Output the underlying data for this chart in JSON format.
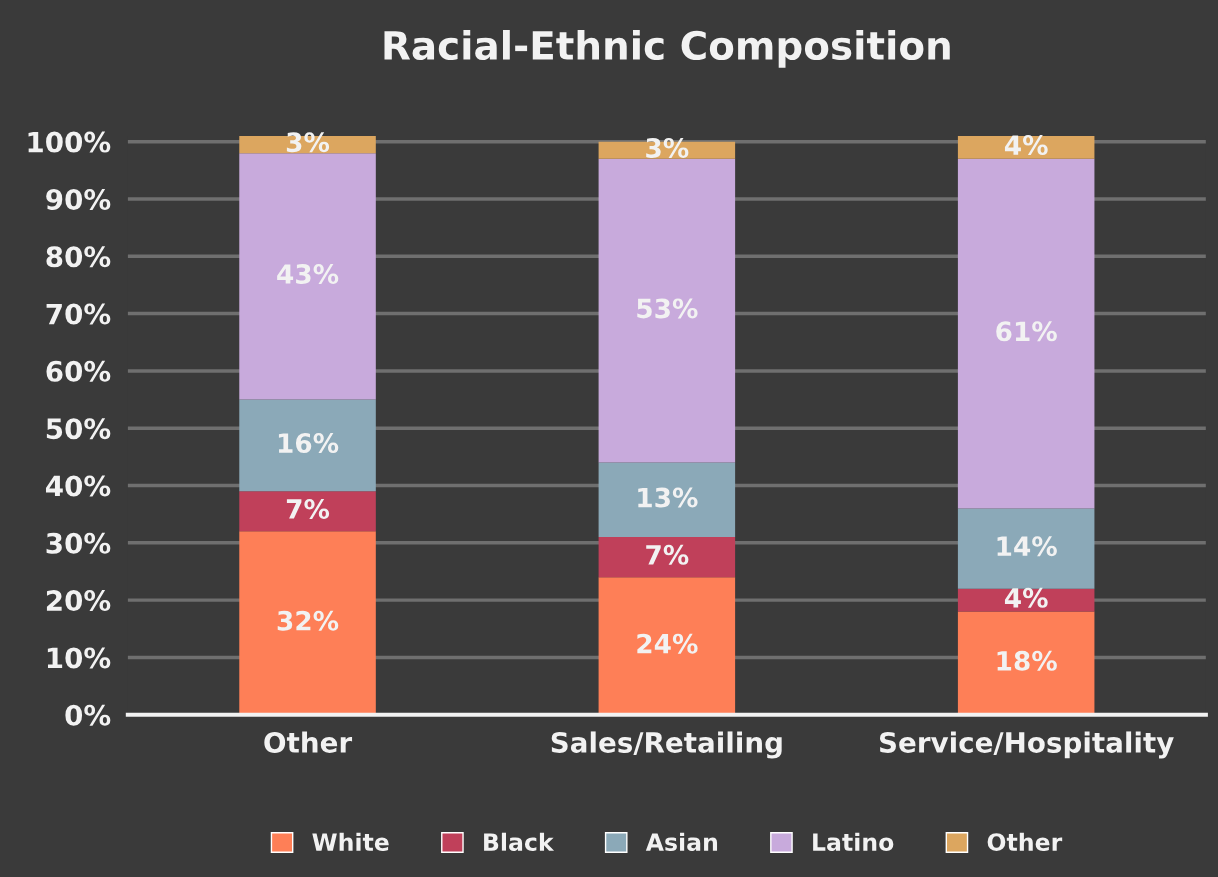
{
  "chart_data": {
    "type": "bar",
    "stacked": true,
    "title": "Racial-Ethnic Composition",
    "categories": [
      "Other",
      "Sales/Retailing",
      "Service/Hospitality"
    ],
    "series": [
      {
        "name": "White",
        "color": "#fe7f57",
        "values": [
          32,
          24,
          18
        ],
        "value_labels": [
          "32%",
          "24%",
          "18%"
        ]
      },
      {
        "name": "Black",
        "color": "#c0405a",
        "values": [
          7,
          7,
          4
        ],
        "value_labels": [
          "7%",
          "7%",
          "4%"
        ]
      },
      {
        "name": "Asian",
        "color": "#8ba9b8",
        "values": [
          16,
          13,
          14
        ],
        "value_labels": [
          "16%",
          "13%",
          "14%"
        ]
      },
      {
        "name": "Latino",
        "color": "#c8aadc",
        "values": [
          43,
          53,
          61
        ],
        "value_labels": [
          "43%",
          "53%",
          "61%"
        ]
      },
      {
        "name": "Other",
        "color": "#dca65f",
        "values": [
          3,
          3,
          4
        ],
        "value_labels": [
          "3%",
          "3%",
          "4%"
        ]
      }
    ],
    "ylim": [
      0,
      101
    ],
    "yticks": [
      {
        "value": 0,
        "label": "0%"
      },
      {
        "value": 10,
        "label": "10%"
      },
      {
        "value": 20,
        "label": "20%"
      },
      {
        "value": 30,
        "label": "30%"
      },
      {
        "value": 40,
        "label": "40%"
      },
      {
        "value": 50,
        "label": "50%"
      },
      {
        "value": 60,
        "label": "60%"
      },
      {
        "value": 70,
        "label": "70%"
      },
      {
        "value": 80,
        "label": "80%"
      },
      {
        "value": 90,
        "label": "90%"
      },
      {
        "value": 100,
        "label": "100%"
      }
    ],
    "grid": "y",
    "legend": "bottom"
  }
}
